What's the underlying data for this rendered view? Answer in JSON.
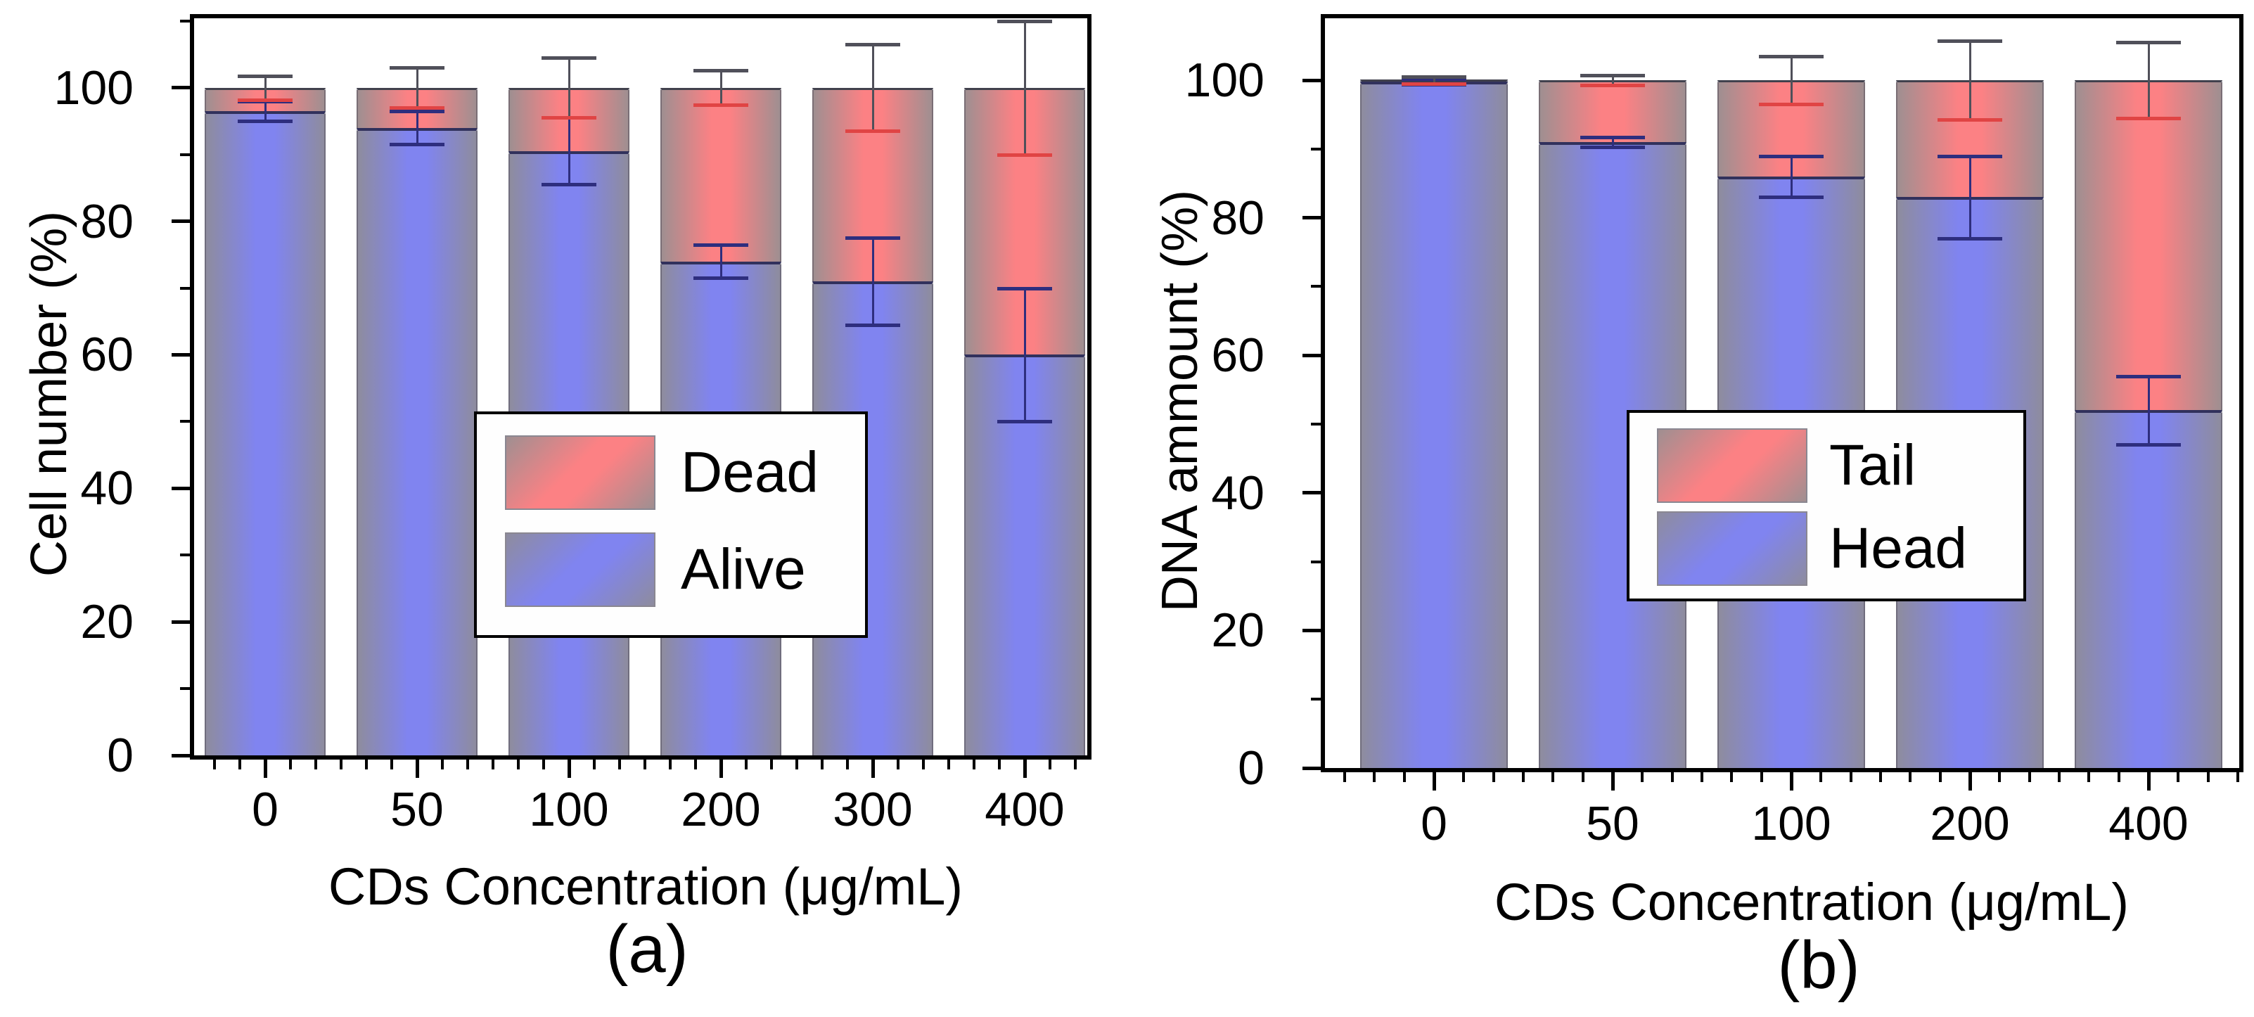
{
  "figure": {
    "background": "#ffffff"
  },
  "colors": {
    "bar_blue_center": "#8084f0",
    "bar_blue_edge": "#8e8c9e",
    "bar_red_center": "#fc8184",
    "bar_red_edge": "#9f8f91",
    "segment_divider": "#31315c",
    "bar_top_line": "#41414d",
    "frame": "#000000",
    "error_gray": "#50505a",
    "error_red": "#e04444",
    "error_blue": "#2e2e7e",
    "text": "#000000",
    "legend_border": "#000000",
    "legend_bg": "#fefefe"
  },
  "chart_data": [
    {
      "id": "a",
      "type": "bar",
      "stacked": true,
      "stack_total": 100,
      "ylabel": "Cell number (%)",
      "xlabel": "CDs Concentration (μg/mL)",
      "caption": "(a)",
      "categories": [
        "0",
        "50",
        "100",
        "200",
        "300",
        "400"
      ],
      "series": [
        {
          "name": "Alive",
          "color": "blue",
          "values": [
            96.5,
            94,
            90.5,
            74,
            71,
            60
          ],
          "errors": [
            1.5,
            2.5,
            5,
            2.5,
            6.5,
            10
          ]
        },
        {
          "name": "Dead",
          "color": "red",
          "values": [
            3.5,
            6,
            9.5,
            26,
            29,
            40
          ],
          "errors": [
            1.8,
            3,
            4.5,
            2.6,
            6.5,
            10
          ]
        }
      ],
      "yticks": [
        0,
        20,
        40,
        60,
        80,
        100
      ],
      "yticks_minor": [
        10,
        30,
        50,
        70,
        90,
        110
      ],
      "ylim": [
        0,
        110.4
      ],
      "grid": false,
      "legend": {
        "entries": [
          "Dead",
          "Alive"
        ],
        "position": "inside-center"
      }
    },
    {
      "id": "b",
      "type": "bar",
      "stacked": true,
      "stack_total": 100,
      "ylabel": "DNA ammount (%)",
      "xlabel": "CDs Concentration  (μg/mL)",
      "caption": "(b)",
      "categories": [
        "0",
        "50",
        "100",
        "200",
        "400"
      ],
      "series": [
        {
          "name": "Head",
          "color": "blue",
          "values": [
            99.8,
            91,
            86,
            83,
            52
          ],
          "errors": [
            0.4,
            0.7,
            3,
            6,
            5
          ]
        },
        {
          "name": "Tail",
          "color": "red",
          "values": [
            0.2,
            9,
            14,
            17,
            48
          ],
          "errors": [
            0.5,
            0.7,
            3.5,
            5.7,
            5.5
          ]
        }
      ],
      "yticks": [
        0,
        20,
        40,
        60,
        80,
        100
      ],
      "yticks_minor": [
        10,
        30,
        50,
        70,
        90
      ],
      "ylim": [
        0,
        109
      ],
      "grid": false,
      "legend": {
        "entries": [
          "Tail",
          "Head"
        ],
        "position": "inside-center"
      }
    }
  ]
}
